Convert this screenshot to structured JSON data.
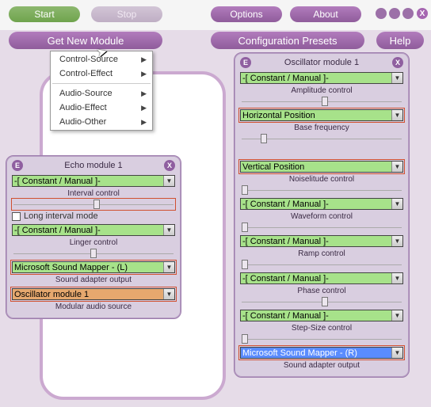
{
  "colors": {
    "app_bg": "#e6dce8",
    "panel_border": "#cba9d0",
    "module_bg": "#d9cee0",
    "pill_purple": "#8f5c9b",
    "pill_green": "#6fa34d",
    "dd_green": "#a7e28a",
    "dd_orange": "#e6a86e",
    "dd_blue": "#5a8cff",
    "highlight_border": "#d05030"
  },
  "toolbar": {
    "start": "Start",
    "stop": "Stop",
    "options": "Options",
    "about": "About",
    "get_new_module": "Get New Module",
    "config_presets": "Configuration Presets",
    "help": "Help"
  },
  "context_menu": {
    "items": [
      {
        "label": "Control-Source",
        "arrow": true
      },
      {
        "label": "Control-Effect",
        "arrow": true
      },
      {
        "sep": true
      },
      {
        "label": "Audio-Source",
        "arrow": true
      },
      {
        "label": "Audio-Effect",
        "arrow": true
      },
      {
        "label": "Audio-Other",
        "arrow": true
      }
    ]
  },
  "echo": {
    "title": "Echo module 1",
    "params": [
      {
        "dd": "-[ Constant / Manual ]-",
        "style": "green",
        "hl": false,
        "label": "Interval control",
        "slider": 0.5,
        "slider_hl": true
      },
      {
        "checkbox": "Long interval mode"
      },
      {
        "dd": "-[ Constant / Manual ]-",
        "style": "green",
        "hl": false,
        "label": "Linger control",
        "slider": 0.48
      },
      {
        "dd": "Microsoft Sound Mapper - (L)",
        "style": "green",
        "hl": true,
        "label": "Sound adapter output"
      },
      {
        "dd": "Oscillator module 1",
        "style": "orange",
        "hl": true,
        "label": "Modular audio source"
      }
    ]
  },
  "osc": {
    "title": "Oscillator module 1",
    "params": [
      {
        "dd": "-[ Constant / Manual ]-",
        "style": "green",
        "hl": false,
        "label": "Amplitude control",
        "slider": 0.5
      },
      {
        "dd": "Horizontal Position",
        "style": "green",
        "hl": true,
        "label": "Base frequency",
        "slider": 0.12
      },
      {
        "spacer": 18
      },
      {
        "dd": "Vertical Position",
        "style": "green",
        "hl": true,
        "label": "Noiselitude control",
        "slider": 0.0
      },
      {
        "dd": "-[ Constant / Manual ]-",
        "style": "green",
        "hl": false,
        "label": "Waveform control",
        "slider": 0.0
      },
      {
        "dd": "-[ Constant / Manual ]-",
        "style": "green",
        "hl": false,
        "label": "Ramp control",
        "slider": 0.0
      },
      {
        "dd": "-[ Constant / Manual ]-",
        "style": "green",
        "hl": false,
        "label": "Phase control",
        "slider": 0.5
      },
      {
        "dd": "-[ Constant / Manual ]-",
        "style": "green",
        "hl": false,
        "label": "Step-Size control",
        "slider": 0.0
      },
      {
        "dd": "Microsoft Sound Mapper - (R)",
        "style": "blue",
        "hl": true,
        "label": "Sound adapter output"
      }
    ]
  }
}
